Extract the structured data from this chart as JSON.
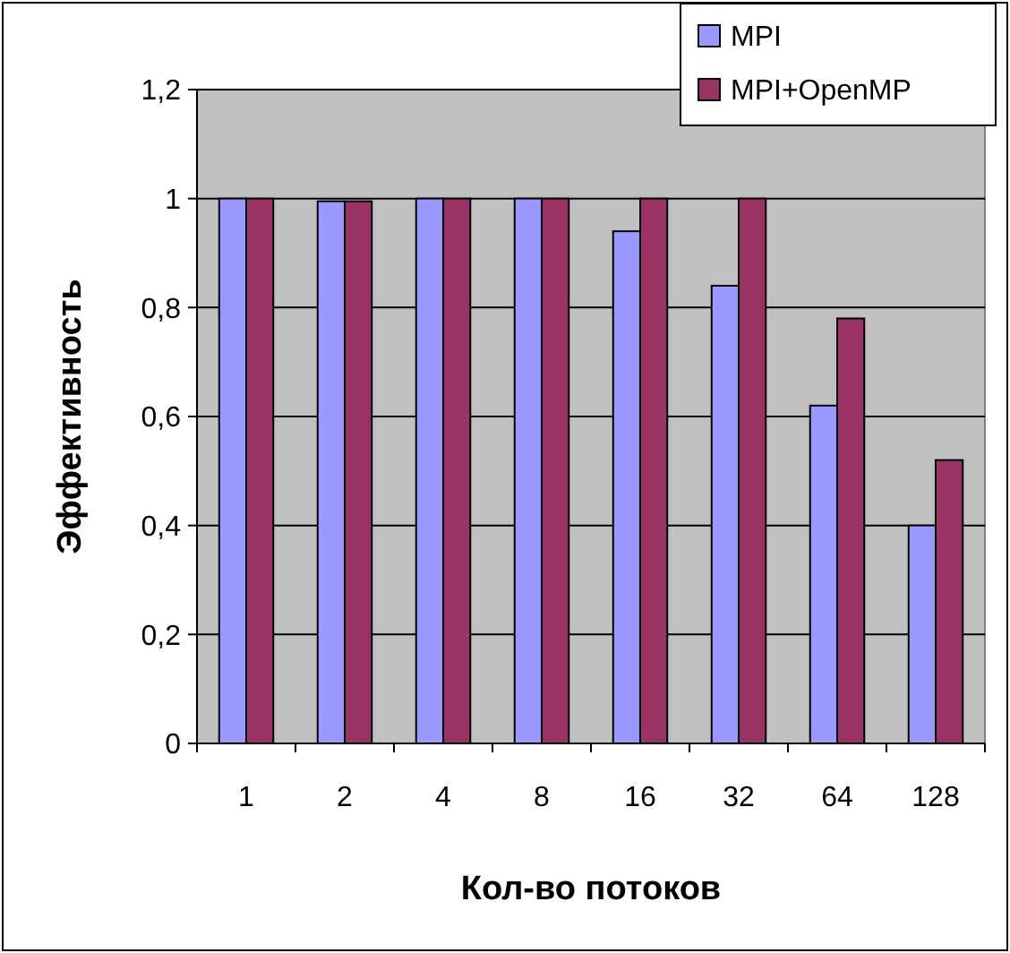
{
  "chart_data": {
    "type": "bar",
    "xlabel": "Кол-во потоков",
    "ylabel": "Эффективность",
    "categories": [
      "1",
      "2",
      "4",
      "8",
      "16",
      "32",
      "64",
      "128"
    ],
    "series": [
      {
        "name": "MPI",
        "color": "#9999ff",
        "values": [
          1,
          0.995,
          1,
          1,
          0.94,
          0.84,
          0.62,
          0.4
        ]
      },
      {
        "name": "MPI+OpenMP",
        "color": "#993366",
        "values": [
          1,
          0.995,
          1,
          1,
          1,
          1,
          0.78,
          0.52
        ]
      }
    ],
    "ylim": [
      0,
      1.2
    ],
    "yticks": [
      0,
      {
        "value": 0.2,
        "label": "0,2"
      },
      {
        "value": 0.4,
        "label": "0,4"
      },
      {
        "value": 0.6,
        "label": "0,6"
      },
      {
        "value": 0.8,
        "label": "0,8"
      },
      1,
      {
        "value": 1.2,
        "label": "1,2"
      }
    ],
    "grid": "y",
    "legend": "top right"
  }
}
